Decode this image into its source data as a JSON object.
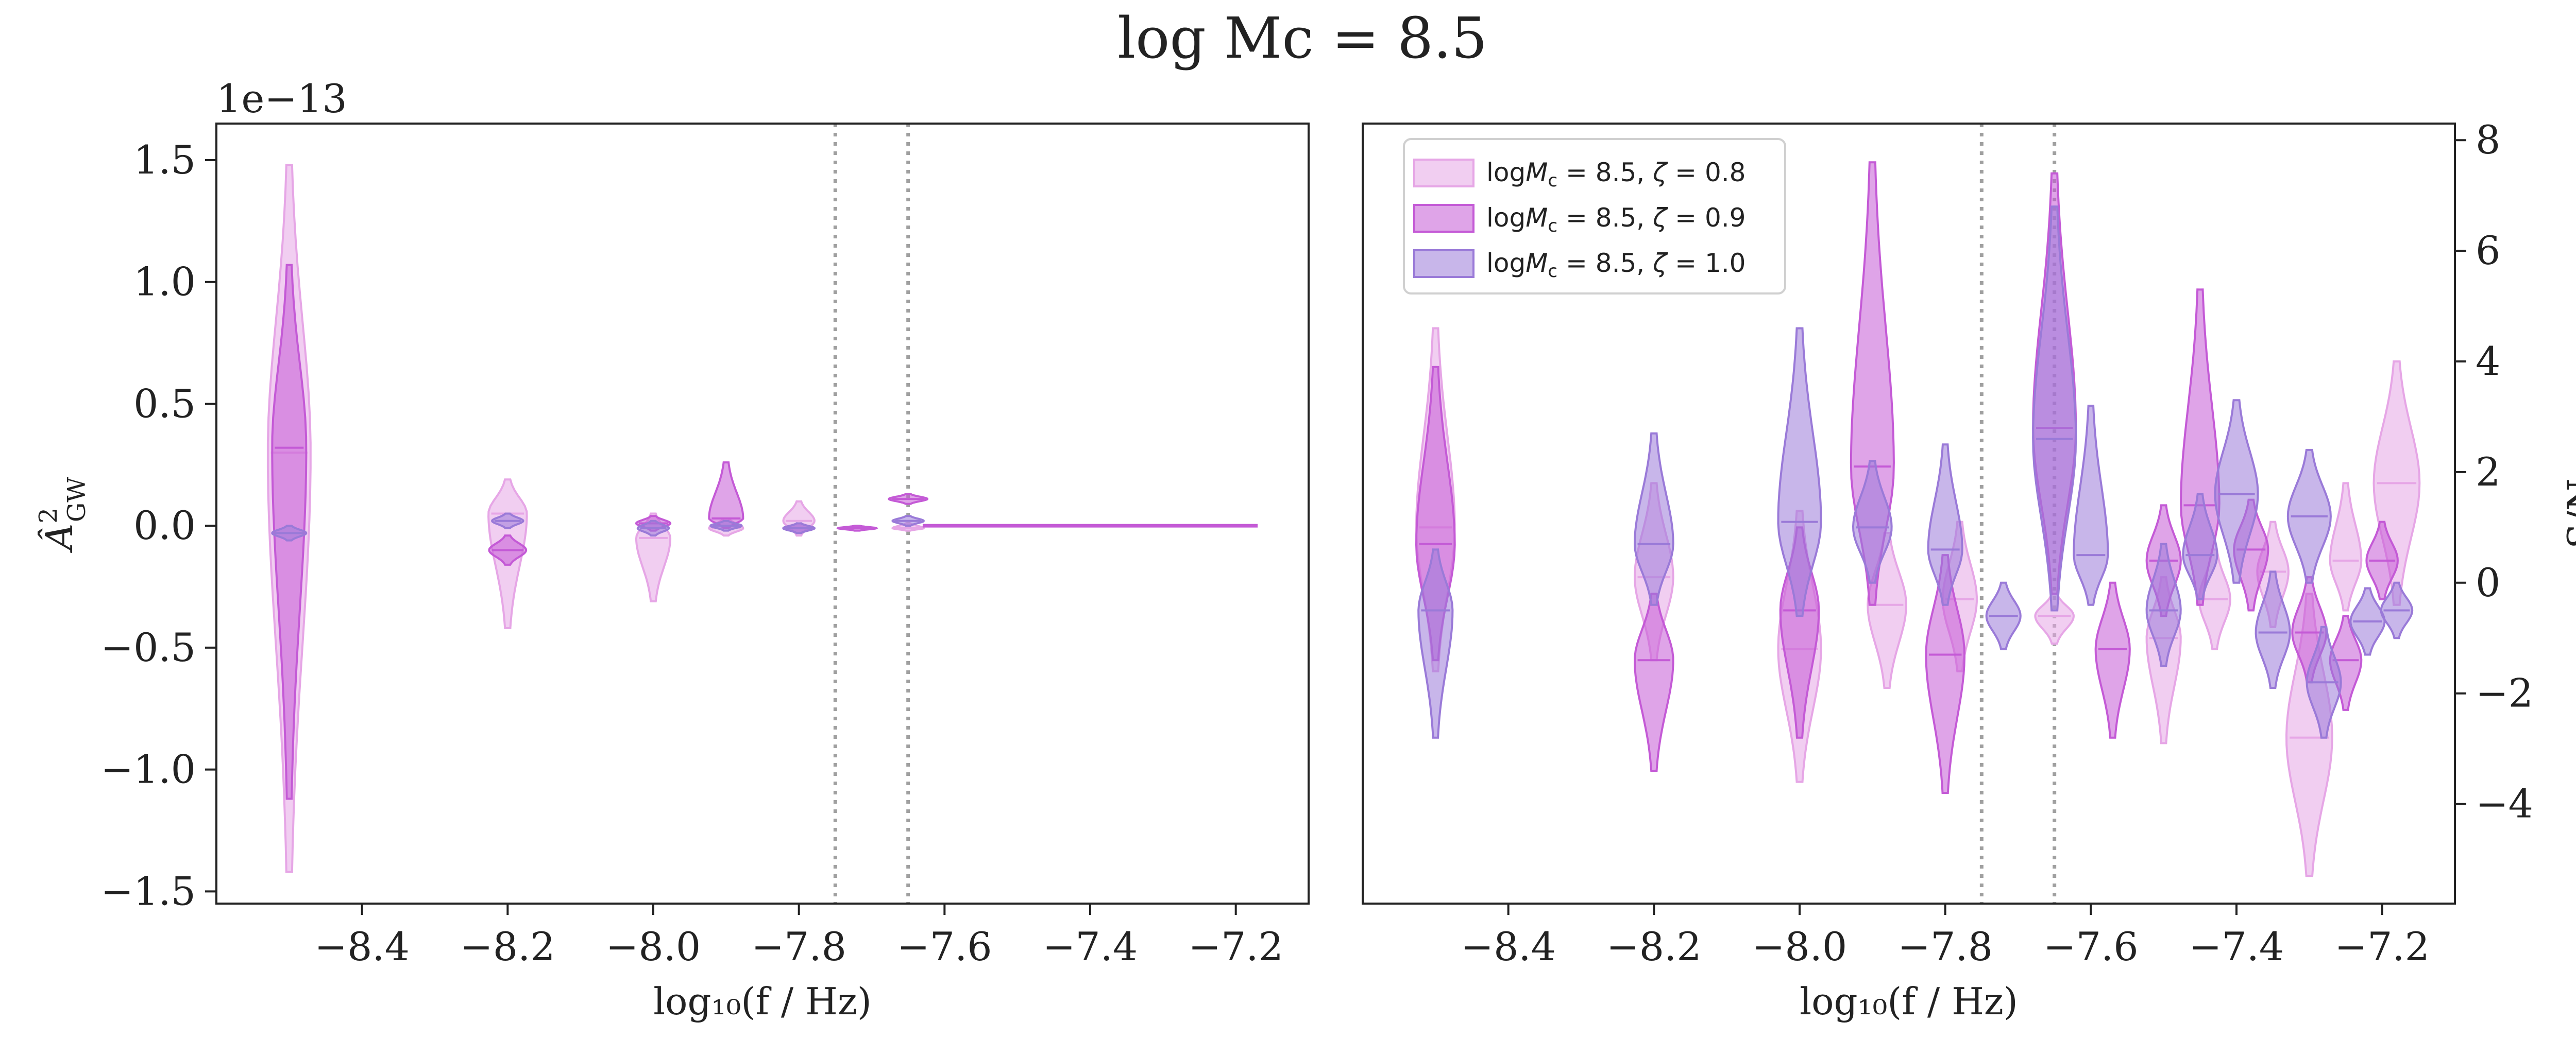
{
  "figure": {
    "suptitle": "log Mc = 8.5"
  },
  "colors": {
    "zeta_0_8": "#e6a6e6",
    "zeta_0_9": "#c45ad6",
    "zeta_1_0": "#9a7ad8",
    "vline": "#a0a0a0",
    "axis": "#222222"
  },
  "chart_data": [
    {
      "type": "violin",
      "xlabel": "log₁₀(f / Hz)",
      "ylabel": "Â²_GW",
      "ylabel_base": "Â",
      "ylabel_sup": "2",
      "ylabel_sub": "GW",
      "offset_label": "1e−13",
      "xlim": [
        -8.6,
        -7.1
      ],
      "ylim": [
        -1.55,
        1.65
      ],
      "xticks": [
        -8.4,
        -8.2,
        -8.0,
        -7.8,
        -7.6,
        -7.4,
        -7.2
      ],
      "xtick_labels": [
        "−8.4",
        "−8.2",
        "−8.0",
        "−7.8",
        "−7.6",
        "−7.4",
        "−7.2"
      ],
      "yticks": [
        -1.5,
        -1.0,
        -0.5,
        0.0,
        0.5,
        1.0,
        1.5
      ],
      "ytick_labels": [
        "−1.5",
        "−1.0",
        "−0.5",
        "0.0",
        "0.5",
        "1.0",
        "1.5"
      ],
      "vlines": [
        -7.75,
        -7.65
      ],
      "series": [
        {
          "color_key": "zeta_0_8",
          "violins": [
            {
              "x": -8.5,
              "center": 0.3,
              "min": -1.42,
              "max": 1.48,
              "width": 0.028
            },
            {
              "x": -8.2,
              "center": 0.05,
              "min": -0.42,
              "max": 0.19,
              "width": 0.025
            },
            {
              "x": -8.0,
              "center": -0.05,
              "min": -0.31,
              "max": 0.05,
              "width": 0.022
            },
            {
              "x": -7.9,
              "center": -0.01,
              "min": -0.04,
              "max": 0.03,
              "width": 0.022
            },
            {
              "x": -7.8,
              "center": 0.02,
              "min": -0.04,
              "max": 0.1,
              "width": 0.02
            },
            {
              "x": -7.65,
              "center": -0.01,
              "min": -0.02,
              "max": 0.01,
              "width": 0.02
            }
          ]
        },
        {
          "color_key": "zeta_0_9",
          "violins": [
            {
              "x": -8.5,
              "center": 0.32,
              "min": -1.12,
              "max": 1.07,
              "width": 0.022
            },
            {
              "x": -8.2,
              "center": -0.1,
              "min": -0.16,
              "max": -0.04,
              "width": 0.024
            },
            {
              "x": -8.0,
              "center": 0.01,
              "min": -0.02,
              "max": 0.04,
              "width": 0.022
            },
            {
              "x": -7.9,
              "center": 0.03,
              "min": -0.01,
              "max": 0.26,
              "width": 0.022
            },
            {
              "x": -7.8,
              "center": -0.01,
              "min": -0.03,
              "max": 0.01,
              "width": 0.02
            },
            {
              "x": -7.72,
              "center": -0.01,
              "min": -0.02,
              "max": 0.0,
              "width": 0.025
            },
            {
              "x": -7.65,
              "center": 0.11,
              "min": 0.09,
              "max": 0.13,
              "width": 0.025
            }
          ]
        },
        {
          "color_key": "zeta_1_0",
          "violins": [
            {
              "x": -8.5,
              "center": -0.03,
              "min": -0.06,
              "max": 0.0,
              "width": 0.022
            },
            {
              "x": -8.2,
              "center": 0.02,
              "min": -0.01,
              "max": 0.05,
              "width": 0.02
            },
            {
              "x": -8.0,
              "center": -0.01,
              "min": -0.04,
              "max": 0.02,
              "width": 0.02
            },
            {
              "x": -7.9,
              "center": 0.0,
              "min": -0.02,
              "max": 0.02,
              "width": 0.02
            },
            {
              "x": -7.8,
              "center": -0.01,
              "min": -0.03,
              "max": 0.01,
              "width": 0.02
            },
            {
              "x": -7.65,
              "center": 0.02,
              "min": 0.0,
              "max": 0.04,
              "width": 0.02
            }
          ]
        }
      ],
      "flat_line": {
        "x_start": -7.63,
        "x_end": -7.17,
        "y": 0.0
      }
    },
    {
      "type": "violin",
      "xlabel": "log₁₀(f / Hz)",
      "ylabel": "S/N",
      "ylabel_position": "right",
      "xlim": [
        -8.6,
        -7.1
      ],
      "ylim": [
        -5.8,
        8.3
      ],
      "xticks": [
        -8.4,
        -8.2,
        -8.0,
        -7.8,
        -7.6,
        -7.4,
        -7.2
      ],
      "xtick_labels": [
        "−8.4",
        "−8.2",
        "−8.0",
        "−7.8",
        "−7.6",
        "−7.4",
        "−7.2"
      ],
      "yticks": [
        -4,
        -2,
        0,
        2,
        4,
        6,
        8
      ],
      "ytick_labels": [
        "−4",
        "−2",
        "0",
        "2",
        "4",
        "6",
        "8"
      ],
      "vlines": [
        -7.75,
        -7.65
      ],
      "legend": {
        "placement": "top-left",
        "entries": [
          {
            "prefix": "log",
            "mathsym": "M",
            "sub": "c",
            "rest": " = 8.5, ",
            "zeta": "ζ",
            "zeta_rest": " = 0.8",
            "color_key": "zeta_0_8"
          },
          {
            "prefix": "log",
            "mathsym": "M",
            "sub": "c",
            "rest": " = 8.5, ",
            "zeta": "ζ",
            "zeta_rest": " = 0.9",
            "color_key": "zeta_0_9"
          },
          {
            "prefix": "log",
            "mathsym": "M",
            "sub": "c",
            "rest": " = 8.5, ",
            "zeta": "ζ",
            "zeta_rest": " = 1.0",
            "color_key": "zeta_1_0"
          }
        ]
      },
      "series": [
        {
          "name": "logMc = 8.5, ζ = 0.8",
          "color_key": "zeta_0_8",
          "violins": [
            {
              "x": -8.5,
              "center": 1.0,
              "min": -1.6,
              "max": 4.6,
              "width": 0.025
            },
            {
              "x": -8.2,
              "center": 0.1,
              "min": -1.4,
              "max": 1.8,
              "width": 0.025
            },
            {
              "x": -8.0,
              "center": -1.2,
              "min": -3.6,
              "max": 1.3,
              "width": 0.028
            },
            {
              "x": -7.88,
              "center": -0.4,
              "min": -1.9,
              "max": 0.9,
              "width": 0.025
            },
            {
              "x": -7.78,
              "center": -0.3,
              "min": -1.6,
              "max": 1.1,
              "width": 0.022
            },
            {
              "x": -7.65,
              "center": -0.6,
              "min": -1.1,
              "max": -0.2,
              "width": 0.025
            },
            {
              "x": -7.5,
              "center": -1.0,
              "min": -2.9,
              "max": 0.1,
              "width": 0.022
            },
            {
              "x": -7.43,
              "center": -0.3,
              "min": -1.2,
              "max": 0.6,
              "width": 0.02
            },
            {
              "x": -7.35,
              "center": 0.2,
              "min": -0.8,
              "max": 1.1,
              "width": 0.02
            },
            {
              "x": -7.3,
              "center": -2.8,
              "min": -5.3,
              "max": -0.2,
              "width": 0.03
            },
            {
              "x": -7.25,
              "center": 0.4,
              "min": -0.5,
              "max": 1.8,
              "width": 0.02
            },
            {
              "x": -7.18,
              "center": 1.8,
              "min": -0.4,
              "max": 4.0,
              "width": 0.03
            }
          ]
        },
        {
          "name": "logMc = 8.5, ζ = 0.9",
          "color_key": "zeta_0_9",
          "violins": [
            {
              "x": -8.5,
              "center": 0.7,
              "min": -1.4,
              "max": 3.9,
              "width": 0.025
            },
            {
              "x": -8.2,
              "center": -1.4,
              "min": -3.4,
              "max": -0.2,
              "width": 0.025
            },
            {
              "x": -8.0,
              "center": -0.5,
              "min": -2.8,
              "max": 1.0,
              "width": 0.025
            },
            {
              "x": -7.9,
              "center": 2.1,
              "min": -0.4,
              "max": 7.6,
              "width": 0.028
            },
            {
              "x": -7.8,
              "center": -1.3,
              "min": -3.8,
              "max": 0.5,
              "width": 0.025
            },
            {
              "x": -7.65,
              "center": 2.8,
              "min": -0.2,
              "max": 7.4,
              "width": 0.028
            },
            {
              "x": -7.57,
              "center": -1.2,
              "min": -2.8,
              "max": 0.0,
              "width": 0.022
            },
            {
              "x": -7.5,
              "center": 0.4,
              "min": -0.6,
              "max": 1.4,
              "width": 0.022
            },
            {
              "x": -7.45,
              "center": 1.4,
              "min": -0.4,
              "max": 5.3,
              "width": 0.025
            },
            {
              "x": -7.38,
              "center": 0.6,
              "min": -0.5,
              "max": 1.5,
              "width": 0.022
            },
            {
              "x": -7.3,
              "center": -0.9,
              "min": -1.8,
              "max": 0.1,
              "width": 0.022
            },
            {
              "x": -7.25,
              "center": -1.4,
              "min": -2.3,
              "max": -0.6,
              "width": 0.02
            },
            {
              "x": -7.2,
              "center": 0.4,
              "min": -0.3,
              "max": 1.1,
              "width": 0.02
            }
          ]
        },
        {
          "name": "logMc = 8.5, ζ = 1.0",
          "color_key": "zeta_1_0",
          "violins": [
            {
              "x": -8.5,
              "center": -0.5,
              "min": -2.8,
              "max": 0.6,
              "width": 0.022
            },
            {
              "x": -8.2,
              "center": 0.7,
              "min": -0.4,
              "max": 2.7,
              "width": 0.025
            },
            {
              "x": -8.0,
              "center": 1.1,
              "min": -0.6,
              "max": 4.6,
              "width": 0.028
            },
            {
              "x": -7.9,
              "center": 1.0,
              "min": 0.0,
              "max": 2.2,
              "width": 0.025
            },
            {
              "x": -7.8,
              "center": 0.6,
              "min": -0.4,
              "max": 2.5,
              "width": 0.022
            },
            {
              "x": -7.72,
              "center": -0.6,
              "min": -1.2,
              "max": 0.0,
              "width": 0.022
            },
            {
              "x": -7.65,
              "center": 2.6,
              "min": -0.5,
              "max": 6.8,
              "width": 0.028
            },
            {
              "x": -7.6,
              "center": 0.5,
              "min": -0.4,
              "max": 3.2,
              "width": 0.022
            },
            {
              "x": -7.5,
              "center": -0.5,
              "min": -1.5,
              "max": 0.7,
              "width": 0.022
            },
            {
              "x": -7.45,
              "center": 0.5,
              "min": -0.3,
              "max": 1.6,
              "width": 0.022
            },
            {
              "x": -7.4,
              "center": 1.6,
              "min": 0.0,
              "max": 3.3,
              "width": 0.028
            },
            {
              "x": -7.35,
              "center": -0.9,
              "min": -1.9,
              "max": 0.2,
              "width": 0.022
            },
            {
              "x": -7.3,
              "center": 1.2,
              "min": 0.0,
              "max": 2.4,
              "width": 0.028
            },
            {
              "x": -7.28,
              "center": -1.8,
              "min": -2.8,
              "max": -0.8,
              "width": 0.022
            },
            {
              "x": -7.22,
              "center": -0.7,
              "min": -1.3,
              "max": -0.1,
              "width": 0.022
            },
            {
              "x": -7.18,
              "center": -0.5,
              "min": -1.0,
              "max": 0.0,
              "width": 0.02
            }
          ]
        }
      ]
    }
  ]
}
